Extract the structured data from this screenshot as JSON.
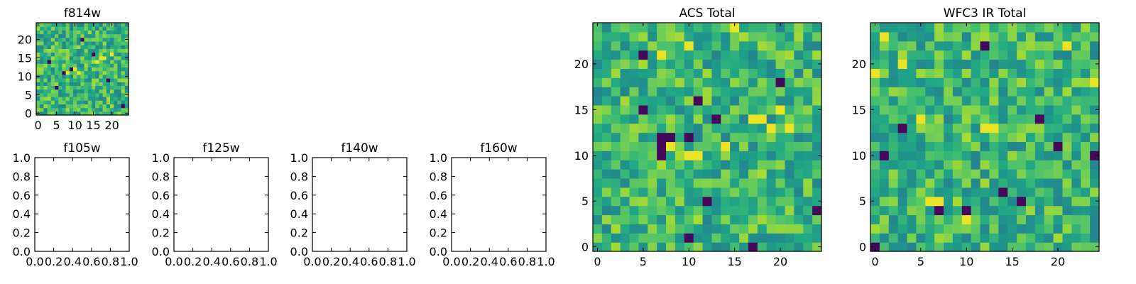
{
  "chart_data": [
    {
      "id": "f814w",
      "type": "heatmap",
      "title": "f814w",
      "grid_size": 25,
      "xlim": [
        -0.5,
        24.5
      ],
      "ylim": [
        -0.5,
        24.5
      ],
      "xticks": [
        0,
        5,
        10,
        15,
        20
      ],
      "yticks": [
        0,
        5,
        10,
        15,
        20
      ],
      "xlabel": "",
      "ylabel": "",
      "hot_spots": [
        [
          8,
          11
        ],
        [
          10,
          12
        ],
        [
          17,
          15
        ],
        [
          18,
          15
        ],
        [
          16,
          14
        ],
        [
          20,
          16
        ],
        [
          11,
          11
        ]
      ],
      "cold_spots": [
        [
          7,
          11
        ],
        [
          9,
          12
        ],
        [
          15,
          16
        ],
        [
          19,
          9
        ],
        [
          5,
          7
        ],
        [
          23,
          2
        ],
        [
          12,
          20
        ],
        [
          3,
          14
        ]
      ],
      "seed": 814
    },
    {
      "id": "f105w",
      "type": "heatmap",
      "title": "f105w",
      "empty": true,
      "xlim": [
        0.0,
        1.0
      ],
      "ylim": [
        0.0,
        1.0
      ],
      "xtick_labels": [
        "0.0",
        "0.2",
        "0.4",
        "0.6",
        "0.8",
        "1.0"
      ],
      "ytick_labels": [
        "0.0",
        "0.2",
        "0.4",
        "0.6",
        "0.8",
        "1.0"
      ]
    },
    {
      "id": "f125w",
      "type": "heatmap",
      "title": "f125w",
      "empty": true,
      "xlim": [
        0.0,
        1.0
      ],
      "ylim": [
        0.0,
        1.0
      ],
      "xtick_labels": [
        "0.0",
        "0.2",
        "0.4",
        "0.6",
        "0.8",
        "1.0"
      ],
      "ytick_labels": [
        "0.0",
        "0.2",
        "0.4",
        "0.6",
        "0.8",
        "1.0"
      ]
    },
    {
      "id": "f140w",
      "type": "heatmap",
      "title": "f140w",
      "empty": true,
      "xlim": [
        0.0,
        1.0
      ],
      "ylim": [
        0.0,
        1.0
      ],
      "xtick_labels": [
        "0.0",
        "0.2",
        "0.4",
        "0.6",
        "0.8",
        "1.0"
      ],
      "ytick_labels": [
        "0.0",
        "0.2",
        "0.4",
        "0.6",
        "0.8",
        "1.0"
      ]
    },
    {
      "id": "f160w",
      "type": "heatmap",
      "title": "f160w",
      "empty": true,
      "xlim": [
        0.0,
        1.0
      ],
      "ylim": [
        0.0,
        1.0
      ],
      "xtick_labels": [
        "0.0",
        "0.2",
        "0.4",
        "0.6",
        "0.8",
        "1.0"
      ],
      "ytick_labels": [
        "0.0",
        "0.2",
        "0.4",
        "0.6",
        "0.8",
        "1.0"
      ]
    },
    {
      "id": "acs",
      "type": "heatmap",
      "title": "ACS Total",
      "grid_size": 25,
      "xlim": [
        -0.5,
        24.5
      ],
      "ylim": [
        -0.5,
        24.5
      ],
      "xticks": [
        0,
        5,
        10,
        15,
        20
      ],
      "yticks": [
        0,
        5,
        10,
        15,
        20
      ],
      "xlabel": "",
      "ylabel": "",
      "hot_spots": [
        [
          8,
          11
        ],
        [
          10,
          10
        ],
        [
          11,
          10
        ],
        [
          17,
          14
        ],
        [
          18,
          14
        ],
        [
          20,
          15
        ],
        [
          19,
          13
        ],
        [
          21,
          13
        ],
        [
          14,
          11
        ],
        [
          10,
          22
        ],
        [
          15,
          24
        ],
        [
          7,
          21
        ]
      ],
      "cold_spots": [
        [
          5,
          21
        ],
        [
          7,
          12
        ],
        [
          7,
          11
        ],
        [
          8,
          12
        ],
        [
          10,
          12
        ],
        [
          7,
          10
        ],
        [
          10,
          1
        ],
        [
          17,
          0
        ],
        [
          20,
          18
        ],
        [
          24,
          4
        ],
        [
          11,
          16
        ],
        [
          5,
          15
        ],
        [
          13,
          14
        ],
        [
          12,
          5
        ]
      ],
      "seed": 101
    },
    {
      "id": "wfc3",
      "type": "heatmap",
      "title": "WFC3 IR Total",
      "grid_size": 25,
      "xlim": [
        -0.5,
        24.5
      ],
      "ylim": [
        -0.5,
        24.5
      ],
      "xticks": [
        0,
        5,
        10,
        15,
        20
      ],
      "yticks": [
        0,
        5,
        10,
        15,
        20
      ],
      "xlabel": "",
      "ylabel": "",
      "hot_spots": [
        [
          5,
          14
        ],
        [
          12,
          13
        ],
        [
          13,
          13
        ],
        [
          6,
          5
        ],
        [
          7,
          5
        ],
        [
          1,
          23
        ],
        [
          3,
          20
        ],
        [
          10,
          3
        ],
        [
          21,
          22
        ],
        [
          24,
          18
        ],
        [
          0,
          19
        ]
      ],
      "cold_spots": [
        [
          3,
          13
        ],
        [
          1,
          10
        ],
        [
          24,
          10
        ],
        [
          14,
          6
        ],
        [
          16,
          5
        ],
        [
          7,
          4
        ],
        [
          10,
          4
        ],
        [
          0,
          0
        ],
        [
          12,
          22
        ],
        [
          18,
          14
        ],
        [
          20,
          11
        ]
      ],
      "seed": 202
    }
  ]
}
